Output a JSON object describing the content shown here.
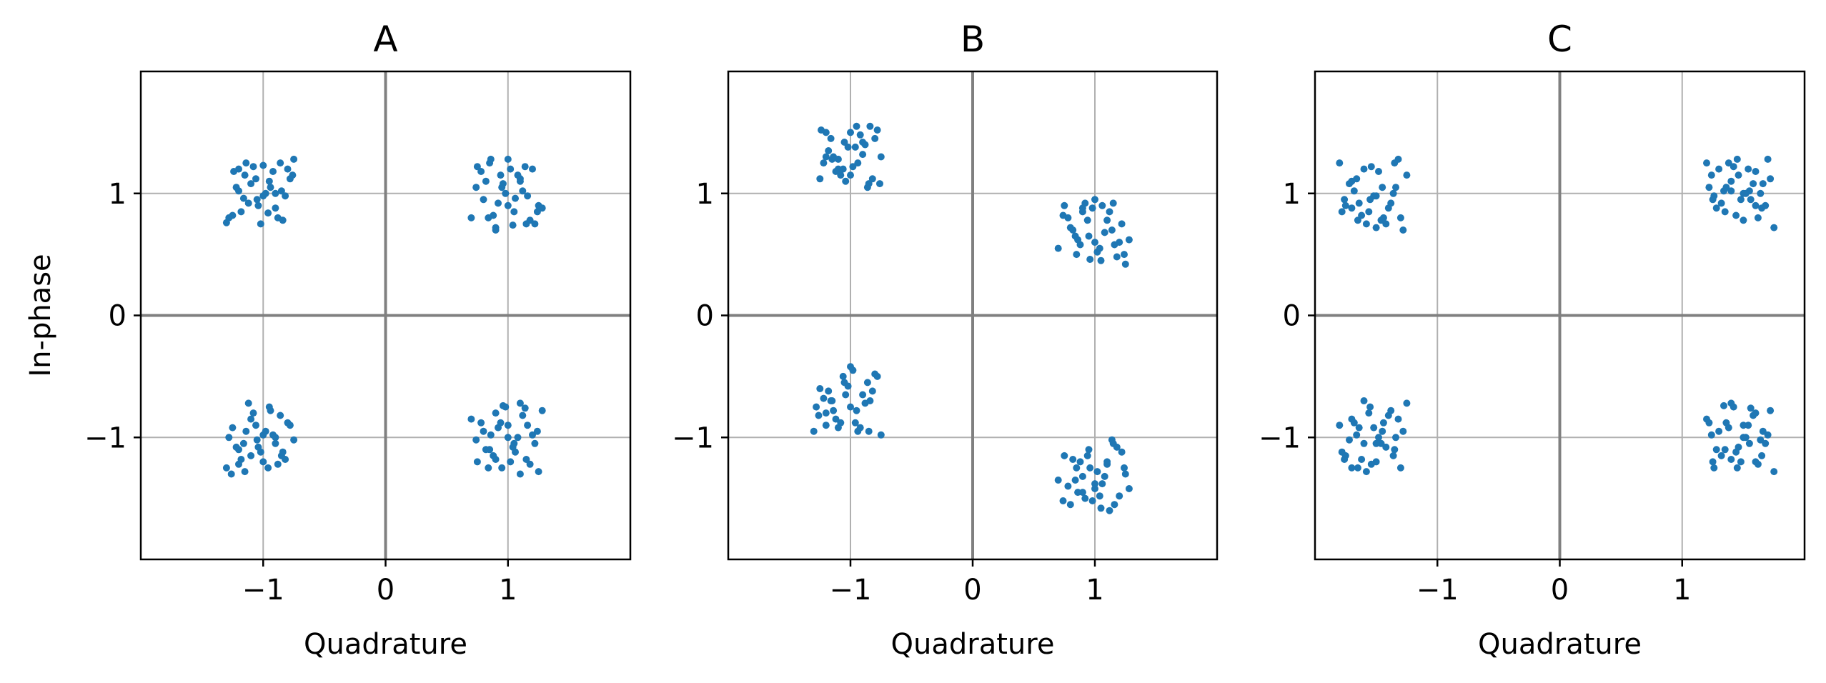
{
  "colors": {
    "points": "#1f77b4",
    "grid": "#b0b0b0",
    "zero_lines": "#808080"
  },
  "chart_data": [
    {
      "type": "scatter",
      "title": "A",
      "xlabel": "Quadrature",
      "ylabel": "In-phase",
      "xlim": [
        -2,
        2
      ],
      "ylim": [
        -2,
        2
      ],
      "xticks": [
        {
          "v": -1,
          "label": "−1"
        },
        {
          "v": 0,
          "label": "0"
        },
        {
          "v": 1,
          "label": "1"
        }
      ],
      "yticks": [
        {
          "v": 1,
          "label": "1"
        },
        {
          "v": 0,
          "label": "0"
        },
        {
          "v": -1,
          "label": "−1"
        }
      ],
      "grid": true,
      "clusters": [
        {
          "x": [
            -1.25,
            -1.2,
            -1.15,
            -1.1,
            -1.05,
            -1.0,
            -0.95,
            -0.9,
            -0.85,
            -0.8,
            -0.75,
            -1.3,
            -1.22,
            -1.12,
            -1.02,
            -0.92,
            -0.82,
            -0.78,
            -1.18,
            -1.08,
            -0.98,
            -0.88,
            -1.24,
            -1.14,
            -1.04,
            -0.94,
            -0.84,
            -1.16,
            -1.06,
            -0.96,
            -0.86,
            -1.2,
            -1.0,
            -0.76,
            -1.28,
            -0.9
          ],
          "y": [
            0.82,
            1.2,
            1.15,
            1.08,
            0.95,
            1.23,
            1.1,
            0.88,
            1.02,
            1.2,
            1.28,
            0.76,
            1.05,
            0.92,
            0.75,
            1.18,
            0.98,
            1.12,
            0.85,
            1.22,
            1.0,
            0.8,
            1.18,
            1.25,
            0.9,
            1.05,
            0.78,
            0.96,
            1.12,
            0.84,
            1.25,
            1.02,
            0.98,
            1.15,
            0.8,
            1.0
          ]
        },
        {
          "x": [
            0.7,
            0.75,
            0.8,
            0.85,
            0.9,
            0.95,
            1.0,
            1.05,
            1.1,
            1.15,
            1.2,
            1.25,
            0.78,
            0.88,
            0.98,
            1.08,
            1.18,
            1.28,
            0.82,
            0.92,
            1.02,
            1.12,
            1.22,
            0.86,
            0.96,
            1.06,
            1.16,
            0.74,
            0.84,
            0.94,
            1.04,
            1.14,
            1.24,
            0.9,
            1.0,
            1.1
          ],
          "y": [
            0.8,
            1.22,
            0.95,
            1.25,
            0.72,
            1.05,
            1.28,
            0.85,
            1.12,
            0.75,
            1.2,
            0.9,
            1.18,
            0.82,
            1.0,
            1.15,
            0.78,
            0.88,
            1.1,
            0.92,
            1.2,
            1.02,
            0.75,
            1.28,
            1.08,
            0.96,
            0.98,
            1.05,
            0.8,
            1.15,
            0.74,
            1.22,
            0.85,
            0.7,
            0.9,
            1.1
          ]
        },
        {
          "x": [
            -1.3,
            -1.25,
            -1.2,
            -1.15,
            -1.1,
            -1.05,
            -1.0,
            -0.95,
            -0.9,
            -0.85,
            -0.8,
            -0.75,
            -1.28,
            -1.18,
            -1.08,
            -0.98,
            -0.88,
            -0.78,
            -1.22,
            -1.12,
            -1.02,
            -0.92,
            -0.82,
            -1.26,
            -1.16,
            -1.06,
            -0.96,
            -0.86,
            -1.14,
            -1.04,
            -0.94,
            -0.84,
            -1.2,
            -1.0,
            -0.9,
            -1.1
          ],
          "y": [
            -1.25,
            -0.92,
            -1.1,
            -1.28,
            -0.85,
            -1.02,
            -1.2,
            -0.75,
            -1.05,
            -1.15,
            -0.88,
            -1.02,
            -1.0,
            -1.18,
            -0.8,
            -0.95,
            -1.22,
            -0.9,
            -1.08,
            -0.72,
            -1.12,
            -0.98,
            -1.18,
            -1.3,
            -1.05,
            -0.9,
            -1.25,
            -0.82,
            -0.95,
            -1.08,
            -0.78,
            -1.12,
            -1.22,
            -0.98,
            -1.0,
            -1.15
          ]
        },
        {
          "x": [
            0.7,
            0.75,
            0.8,
            0.85,
            0.9,
            0.95,
            1.0,
            1.05,
            1.1,
            1.15,
            1.2,
            1.25,
            0.78,
            0.88,
            0.98,
            1.08,
            1.18,
            1.28,
            0.82,
            0.92,
            1.02,
            1.12,
            1.22,
            0.86,
            0.96,
            1.06,
            1.16,
            0.74,
            0.84,
            0.94,
            1.04,
            1.14,
            1.24,
            0.9,
            1.0,
            1.1
          ],
          "y": [
            -0.85,
            -1.2,
            -0.95,
            -1.1,
            -0.8,
            -1.25,
            -0.9,
            -1.05,
            -0.72,
            -1.18,
            -0.98,
            -1.28,
            -0.88,
            -1.15,
            -0.75,
            -1.0,
            -1.22,
            -0.78,
            -1.1,
            -0.92,
            -1.2,
            -0.82,
            -1.05,
            -0.98,
            -0.74,
            -1.12,
            -0.9,
            -1.02,
            -1.25,
            -0.88,
            -1.08,
            -0.76,
            -0.95,
            -1.18,
            -1.0,
            -1.3
          ]
        }
      ]
    },
    {
      "type": "scatter",
      "title": "B",
      "xlabel": "Quadrature",
      "ylabel": "",
      "xlim": [
        -2,
        2
      ],
      "ylim": [
        -2,
        2
      ],
      "xticks": [
        {
          "v": -1,
          "label": "−1"
        },
        {
          "v": 0,
          "label": "0"
        },
        {
          "v": 1,
          "label": "1"
        }
      ],
      "yticks": [
        {
          "v": 1,
          "label": "1"
        },
        {
          "v": 0,
          "label": "0"
        },
        {
          "v": -1,
          "label": "−1"
        }
      ],
      "grid": true,
      "clusters": [
        {
          "x": [
            -1.25,
            -1.2,
            -1.15,
            -1.1,
            -1.05,
            -1.0,
            -0.95,
            -0.9,
            -0.85,
            -0.8,
            -0.75,
            -1.22,
            -1.12,
            -1.02,
            -0.92,
            -0.82,
            -0.78,
            -1.18,
            -1.08,
            -0.98,
            -0.88,
            -1.24,
            -1.14,
            -1.04,
            -0.94,
            -0.84,
            -1.16,
            -1.06,
            -0.96,
            -0.86,
            -1.2,
            -1.0,
            -0.76,
            -1.1,
            -0.9
          ],
          "y": [
            1.12,
            1.5,
            1.28,
            1.2,
            1.42,
            1.15,
            1.55,
            1.32,
            1.08,
            1.45,
            1.3,
            1.25,
            1.18,
            1.38,
            1.48,
            1.12,
            1.52,
            1.35,
            1.15,
            1.22,
            1.4,
            1.52,
            1.3,
            1.1,
            1.25,
            1.55,
            1.45,
            1.2,
            1.38,
            1.05,
            1.3,
            1.5,
            1.08,
            1.28,
            1.42
          ]
        },
        {
          "x": [
            0.7,
            0.75,
            0.8,
            0.85,
            0.9,
            0.95,
            1.0,
            1.05,
            1.1,
            1.15,
            1.2,
            1.25,
            0.78,
            0.88,
            0.98,
            1.08,
            1.18,
            1.28,
            0.82,
            0.92,
            1.02,
            1.12,
            1.22,
            0.86,
            0.96,
            1.06,
            1.16,
            0.74,
            0.84,
            0.94,
            1.04,
            1.14,
            1.24,
            0.9,
            1.0
          ],
          "y": [
            0.55,
            0.9,
            0.72,
            0.5,
            0.85,
            0.65,
            0.95,
            0.45,
            0.78,
            0.92,
            0.6,
            0.42,
            0.8,
            0.58,
            0.88,
            0.68,
            0.48,
            0.62,
            0.7,
            0.92,
            0.52,
            0.85,
            0.75,
            0.62,
            0.46,
            0.9,
            0.58,
            0.82,
            0.65,
            0.78,
            0.55,
            0.7,
            0.5,
            0.88,
            0.6
          ]
        },
        {
          "x": [
            -1.3,
            -1.25,
            -1.2,
            -1.15,
            -1.1,
            -1.05,
            -1.0,
            -0.95,
            -0.9,
            -0.85,
            -0.8,
            -0.75,
            -1.28,
            -1.18,
            -1.08,
            -0.98,
            -0.88,
            -0.78,
            -1.22,
            -1.12,
            -1.02,
            -0.92,
            -0.82,
            -1.26,
            -1.16,
            -1.06,
            -0.96,
            -0.86,
            -1.14,
            -1.04,
            -0.94,
            -0.84,
            -1.2,
            -1.0
          ],
          "y": [
            -0.95,
            -0.6,
            -0.8,
            -0.7,
            -0.92,
            -0.55,
            -0.42,
            -0.78,
            -0.65,
            -0.95,
            -0.48,
            -0.98,
            -0.75,
            -0.62,
            -0.88,
            -0.45,
            -0.72,
            -0.5,
            -0.68,
            -0.85,
            -0.58,
            -0.92,
            -0.62,
            -0.82,
            -0.7,
            -0.5,
            -0.88,
            -0.55,
            -0.78,
            -0.65,
            -0.95,
            -0.7,
            -0.9,
            -0.75
          ]
        },
        {
          "x": [
            0.7,
            0.75,
            0.8,
            0.85,
            0.9,
            0.95,
            1.0,
            1.05,
            1.1,
            1.15,
            1.2,
            1.25,
            0.78,
            0.88,
            0.98,
            1.08,
            1.18,
            1.28,
            0.82,
            0.92,
            1.02,
            1.12,
            1.22,
            0.86,
            0.96,
            1.06,
            1.16,
            0.74,
            0.84,
            0.94,
            1.04,
            1.14,
            1.24,
            0.9,
            1.0,
            1.1
          ],
          "y": [
            -1.35,
            -1.15,
            -1.55,
            -1.25,
            -1.45,
            -1.1,
            -1.38,
            -1.58,
            -1.22,
            -1.05,
            -1.48,
            -1.3,
            -1.4,
            -1.2,
            -1.52,
            -1.32,
            -1.08,
            -1.42,
            -1.18,
            -1.5,
            -1.28,
            -1.6,
            -1.12,
            -1.45,
            -1.25,
            -1.38,
            -1.55,
            -1.52,
            -1.35,
            -1.15,
            -1.48,
            -1.02,
            -1.25,
            -1.32,
            -1.42,
            -1.2
          ]
        }
      ]
    },
    {
      "type": "scatter",
      "title": "C",
      "xlabel": "Quadrature",
      "ylabel": "",
      "xlim": [
        -2,
        2
      ],
      "ylim": [
        -2,
        2
      ],
      "xticks": [
        {
          "v": -1,
          "label": "−1"
        },
        {
          "v": 0,
          "label": "0"
        },
        {
          "v": 1,
          "label": "1"
        }
      ],
      "yticks": [
        {
          "v": 1,
          "label": "1"
        },
        {
          "v": 0,
          "label": "0"
        },
        {
          "v": -1,
          "label": "−1"
        }
      ],
      "grid": true,
      "clusters": [
        {
          "x": [
            -1.8,
            -1.75,
            -1.7,
            -1.65,
            -1.6,
            -1.55,
            -1.5,
            -1.45,
            -1.4,
            -1.35,
            -1.3,
            -1.25,
            -1.78,
            -1.68,
            -1.58,
            -1.48,
            -1.38,
            -1.28,
            -1.72,
            -1.62,
            -1.52,
            -1.42,
            -1.32,
            -1.76,
            -1.66,
            -1.56,
            -1.46,
            -1.36,
            -1.64,
            -1.54,
            -1.44,
            -1.34,
            -1.7,
            -1.5
          ],
          "y": [
            1.25,
            0.9,
            1.1,
            0.78,
            1.2,
            0.95,
            0.72,
            1.05,
            0.88,
            1.25,
            0.8,
            1.15,
            0.85,
            1.02,
            0.75,
            1.18,
            0.92,
            0.7,
            1.08,
            0.82,
            0.98,
            0.75,
            1.28,
            0.95,
            1.12,
            0.85,
            0.78,
            1.0,
            0.92,
            1.22,
            0.8,
            1.05,
            0.88,
            0.98
          ]
        },
        {
          "x": [
            1.2,
            1.25,
            1.3,
            1.35,
            1.4,
            1.45,
            1.5,
            1.55,
            1.6,
            1.65,
            1.7,
            1.75,
            1.22,
            1.32,
            1.42,
            1.52,
            1.62,
            1.72,
            1.28,
            1.38,
            1.48,
            1.58,
            1.68,
            1.24,
            1.34,
            1.44,
            1.54,
            1.64,
            1.26,
            1.36,
            1.46,
            1.56,
            1.66,
            1.4,
            1.5,
            1.6
          ],
          "y": [
            1.25,
            0.95,
            1.2,
            0.85,
            1.1,
            1.28,
            0.78,
            1.02,
            1.18,
            0.88,
            1.28,
            0.72,
            1.05,
            0.92,
            1.22,
            1.0,
            0.8,
            1.12,
            0.88,
            1.25,
            0.95,
            1.08,
            0.9,
            1.15,
            1.02,
            0.82,
            1.2,
            1.0,
            0.98,
            1.05,
            1.15,
            0.95,
            1.08,
            1.02,
            1.0,
            0.9
          ]
        },
        {
          "x": [
            -1.8,
            -1.75,
            -1.7,
            -1.65,
            -1.6,
            -1.55,
            -1.5,
            -1.45,
            -1.4,
            -1.35,
            -1.3,
            -1.25,
            -1.78,
            -1.68,
            -1.58,
            -1.48,
            -1.38,
            -1.28,
            -1.72,
            -1.62,
            -1.52,
            -1.42,
            -1.32,
            -1.76,
            -1.66,
            -1.56,
            -1.46,
            -1.36,
            -1.64,
            -1.54,
            -1.44,
            -1.34,
            -1.7,
            -1.5,
            -1.6
          ],
          "y": [
            -0.9,
            -1.15,
            -0.85,
            -1.25,
            -1.05,
            -0.75,
            -1.2,
            -0.95,
            -0.82,
            -1.1,
            -1.25,
            -0.72,
            -1.12,
            -0.88,
            -1.28,
            -1.0,
            -0.78,
            -0.95,
            -1.02,
            -1.18,
            -0.92,
            -1.08,
            -0.85,
            -1.18,
            -0.98,
            -0.8,
            -1.05,
            -1.15,
            -0.92,
            -1.22,
            -0.88,
            -1.0,
            -1.25,
            -1.05,
            -0.7
          ]
        },
        {
          "x": [
            1.2,
            1.25,
            1.3,
            1.35,
            1.4,
            1.45,
            1.5,
            1.55,
            1.6,
            1.65,
            1.7,
            1.75,
            1.22,
            1.32,
            1.42,
            1.52,
            1.62,
            1.72,
            1.28,
            1.38,
            1.48,
            1.58,
            1.68,
            1.24,
            1.34,
            1.44,
            1.54,
            1.64,
            1.26,
            1.36,
            1.46,
            1.56,
            1.66,
            1.4,
            1.5,
            1.6
          ],
          "y": [
            -0.85,
            -1.2,
            -0.95,
            -1.1,
            -0.72,
            -1.25,
            -0.9,
            -1.05,
            -0.8,
            -1.15,
            -0.98,
            -1.28,
            -0.88,
            -1.15,
            -0.75,
            -1.0,
            -1.22,
            -0.78,
            -1.1,
            -0.92,
            -1.2,
            -0.82,
            -1.05,
            -0.98,
            -0.74,
            -1.12,
            -0.9,
            -1.02,
            -1.25,
            -0.88,
            -1.08,
            -0.76,
            -0.95,
            -1.18,
            -1.0,
            -1.2
          ]
        }
      ]
    }
  ]
}
